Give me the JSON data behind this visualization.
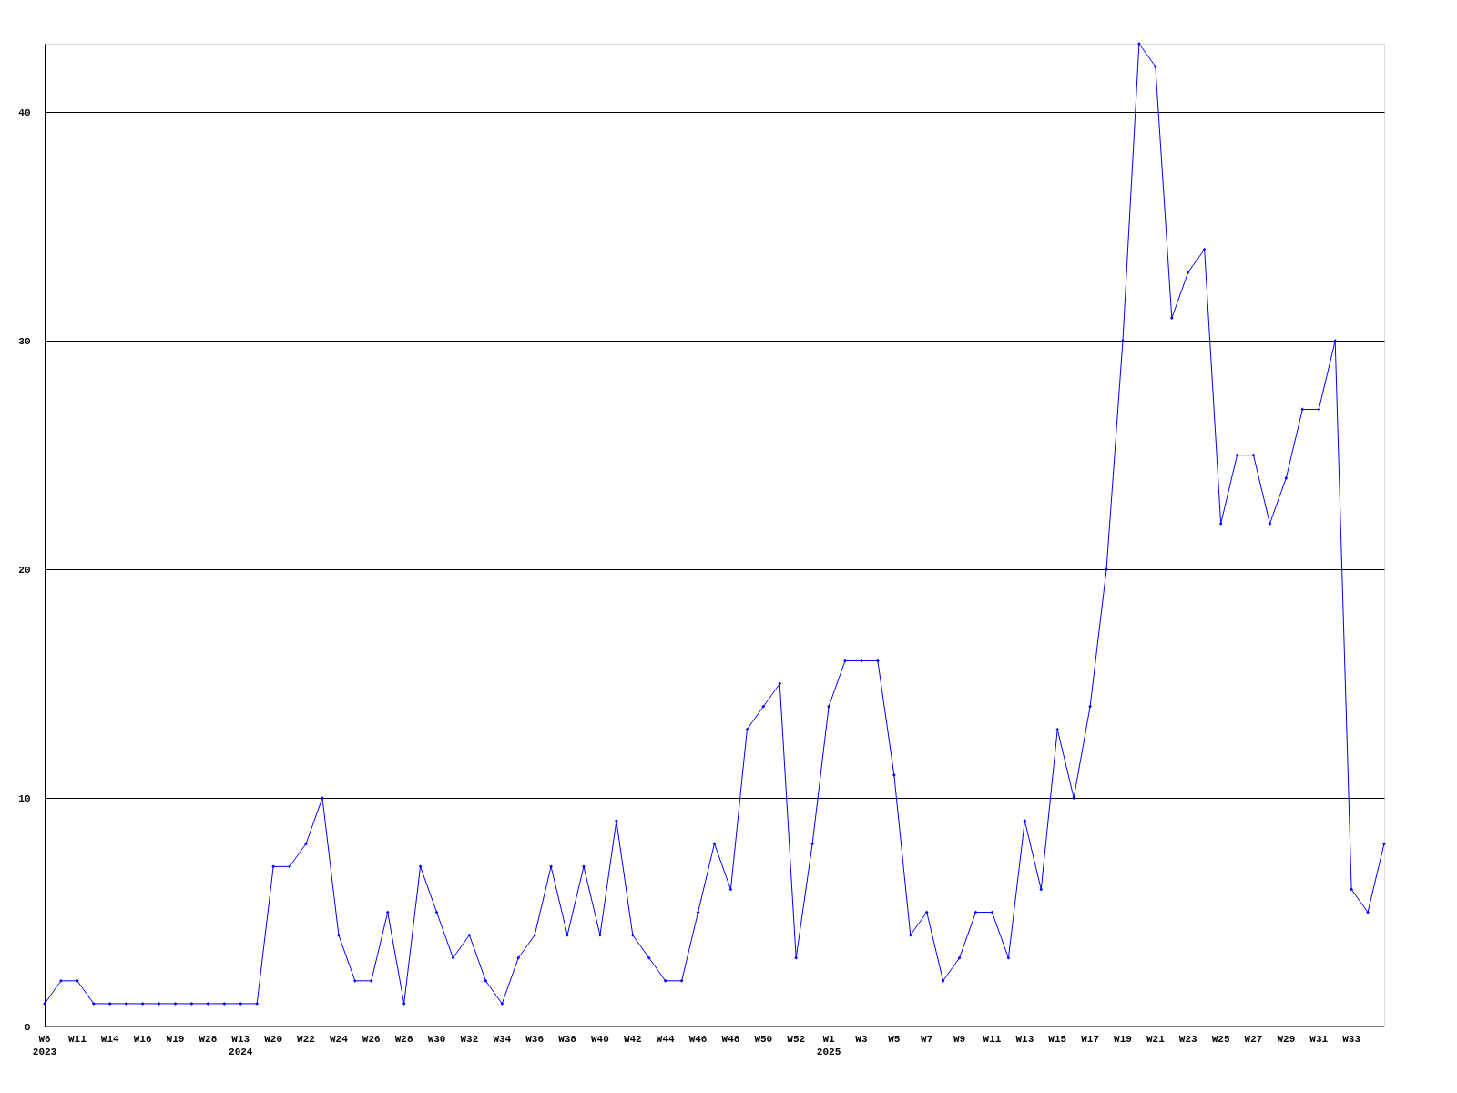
{
  "chart_data": {
    "type": "line",
    "categories": [
      "W6\n2023",
      null,
      "W11",
      null,
      "W14",
      null,
      "W16",
      null,
      "W19",
      null,
      "W28",
      null,
      "W13\n2024",
      null,
      "W20",
      null,
      "W22",
      null,
      "W24",
      null,
      "W26",
      null,
      "W28",
      null,
      "W30",
      null,
      "W32",
      null,
      "W34",
      null,
      "W36",
      null,
      "W38",
      null,
      "W40",
      null,
      "W42",
      null,
      "W44",
      null,
      "W46",
      null,
      "W48",
      null,
      "W50",
      null,
      "W52",
      null,
      "W1\n2025",
      null,
      "W3",
      null,
      "W5",
      null,
      "W7",
      null,
      "W9",
      null,
      "W11",
      null,
      "W13",
      null,
      "W15",
      null,
      "W17",
      null,
      "W19",
      null,
      "W21",
      null,
      "W23",
      null,
      "W25",
      null,
      "W27",
      null,
      "W29",
      null,
      "W31",
      null,
      "W33",
      null,
      null
    ],
    "series": [
      {
        "color": "#0000ff",
        "values": [
          1,
          2,
          2,
          1,
          1,
          1,
          1,
          1,
          1,
          1,
          1,
          1,
          1,
          1,
          7,
          7,
          8,
          10,
          4,
          2,
          2,
          5,
          1,
          7,
          5,
          3,
          4,
          2,
          1,
          3,
          4,
          7,
          4,
          7,
          4,
          9,
          4,
          3,
          2,
          2,
          5,
          8,
          6,
          13,
          14,
          15,
          3,
          8,
          14,
          16,
          16,
          16,
          11,
          4,
          5,
          2,
          3,
          5,
          5,
          3,
          9,
          6,
          13,
          10,
          14,
          20,
          30,
          43,
          42,
          31,
          33,
          34,
          22,
          25,
          25,
          22,
          24,
          27,
          27,
          30,
          6,
          5,
          8
        ]
      }
    ],
    "ylim": [
      0,
      43
    ],
    "yticks": [
      0,
      10,
      20,
      30,
      40
    ],
    "grid": "y",
    "legend": false,
    "marker": "diamond",
    "line_style": "solid"
  }
}
